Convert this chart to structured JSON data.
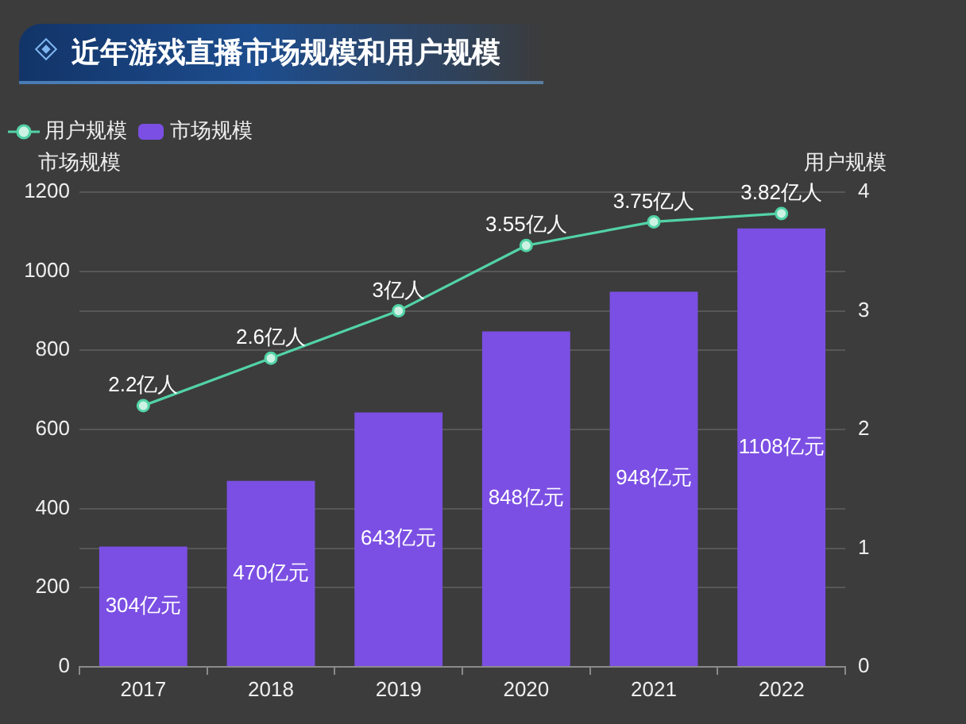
{
  "chart_data": {
    "type": "bar",
    "title": "近年游戏直播市场规模和用户规模",
    "categories": [
      "2017",
      "2018",
      "2019",
      "2020",
      "2021",
      "2022"
    ],
    "series": [
      {
        "name": "用户规模",
        "type": "line",
        "axis": "y2",
        "color": "#52d3a6",
        "values": [
          2.2,
          2.6,
          3,
          3.55,
          3.75,
          3.82
        ],
        "value_labels": [
          "2.2亿人",
          "2.6亿人",
          "3亿人",
          "3.55亿人",
          "3.75亿人",
          "3.82亿人"
        ]
      },
      {
        "name": "市场规模",
        "color": "#7b4fe3",
        "values": [
          304,
          470,
          643,
          848,
          948,
          1108
        ],
        "value_labels": [
          "304亿元",
          "470亿元",
          "643亿元",
          "848亿元",
          "948亿元",
          "1108亿元"
        ]
      }
    ],
    "ylabel": "市场规模",
    "y2label": "用户规模",
    "ylim": [
      0,
      1200
    ],
    "yticks": [
      0,
      200,
      400,
      600,
      800,
      1000,
      1200
    ],
    "y2lim": [
      0,
      4
    ],
    "y2ticks": [
      0,
      1,
      2,
      3,
      4
    ],
    "grid": "y",
    "legend": "top left",
    "marker": "circle"
  }
}
